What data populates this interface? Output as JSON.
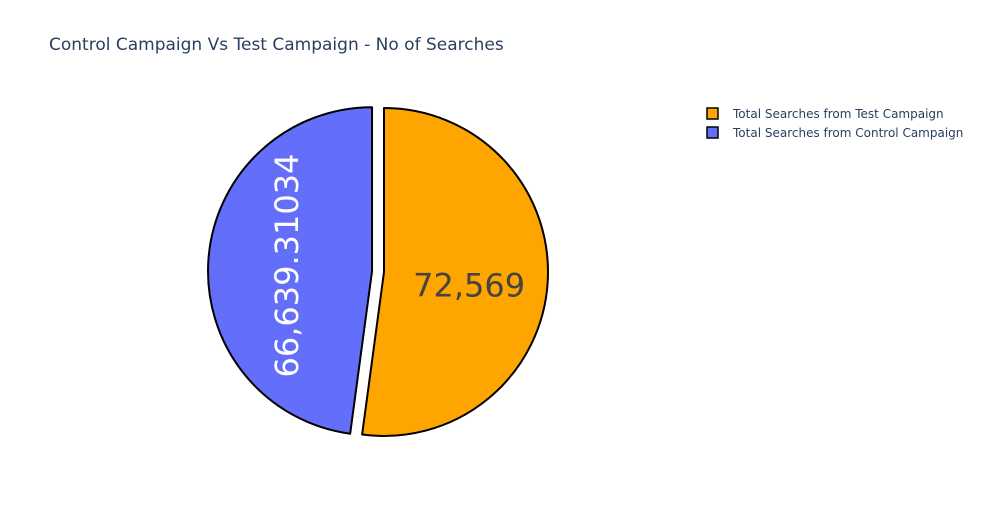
{
  "chart_data": {
    "type": "pie",
    "title": "Control Campaign Vs Test Campaign - No of Searches",
    "slices": [
      {
        "label": "Total Searches from Test Campaign",
        "value": 72569,
        "display": "72,569",
        "color": "#FFA500",
        "text_color": "#444444",
        "pulled": false
      },
      {
        "label": "Total Searches from Control Campaign",
        "value": 66639.31034,
        "display": "66,639.31034",
        "color": "#636EFA",
        "text_color": "#ffffff",
        "pulled": true
      }
    ],
    "legend_position": "top-right",
    "start": "12 o'clock, clockwise",
    "outline_color": "#000000"
  }
}
